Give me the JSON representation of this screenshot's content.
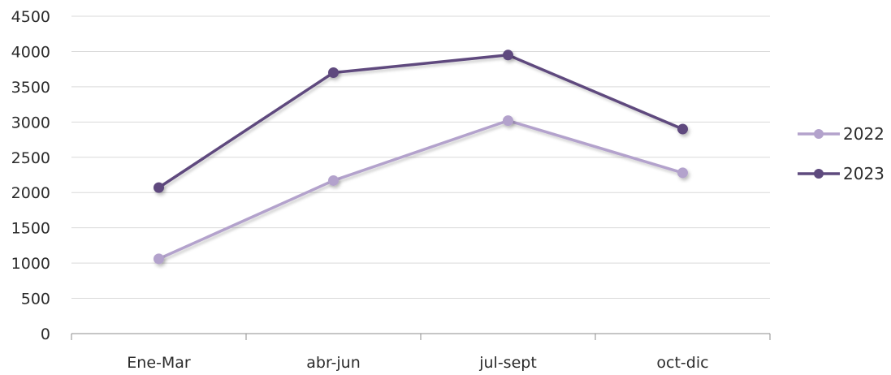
{
  "chart_data": {
    "type": "line",
    "title": "",
    "xlabel": "",
    "ylabel": "",
    "categories": [
      "Ene-Mar",
      "abr-jun",
      "jul-sept",
      "oct-dic"
    ],
    "y_ticks": [
      "0",
      "500",
      "1000",
      "1500",
      "2000",
      "2500",
      "3000",
      "3500",
      "4000",
      "4500"
    ],
    "ylim": [
      0,
      4500
    ],
    "grid": true,
    "legend_position": "right",
    "series": [
      {
        "name": "2022",
        "values": [
          1060,
          2170,
          3020,
          2280
        ],
        "color": "#b3a2cc"
      },
      {
        "name": "2023",
        "values": [
          2070,
          3700,
          3950,
          2900
        ],
        "color": "#5e4a7e"
      }
    ]
  }
}
